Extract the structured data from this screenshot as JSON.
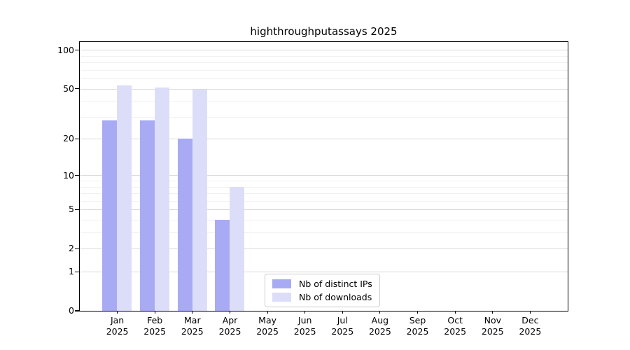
{
  "page": {
    "background": "#ffffff"
  },
  "chart_data": {
    "type": "bar",
    "title": "highthroughputassays 2025",
    "categories": [
      "Jan",
      "Feb",
      "Mar",
      "Apr",
      "May",
      "Jun",
      "Jul",
      "Aug",
      "Sep",
      "Oct",
      "Nov",
      "Dec"
    ],
    "x_tick_year": "2025",
    "series": [
      {
        "name": "Nb of distinct IPs",
        "color": "#a8abf3",
        "values": [
          28,
          28,
          20,
          4,
          0,
          0,
          0,
          0,
          0,
          0,
          0,
          0
        ]
      },
      {
        "name": "Nb of downloads",
        "color": "#dcdef9",
        "values": [
          53,
          51,
          49,
          8,
          0,
          0,
          0,
          0,
          0,
          0,
          0,
          0
        ]
      }
    ],
    "yscale": "log1p",
    "ylim": [
      0,
      115
    ],
    "y_major_ticks": [
      0,
      1,
      2,
      5,
      10,
      20,
      50,
      100
    ],
    "y_minor_gridlines": [
      3,
      4,
      6,
      7,
      8,
      9,
      30,
      40,
      60,
      70,
      80,
      90
    ],
    "grid": "horizontal",
    "legend_position": "lower center",
    "colors": {
      "major_grid": "#d9d9d9",
      "minor_grid": "#f0f0f0",
      "axis": "#000000",
      "legend_border": "#cccccc",
      "text": "#000000"
    }
  }
}
